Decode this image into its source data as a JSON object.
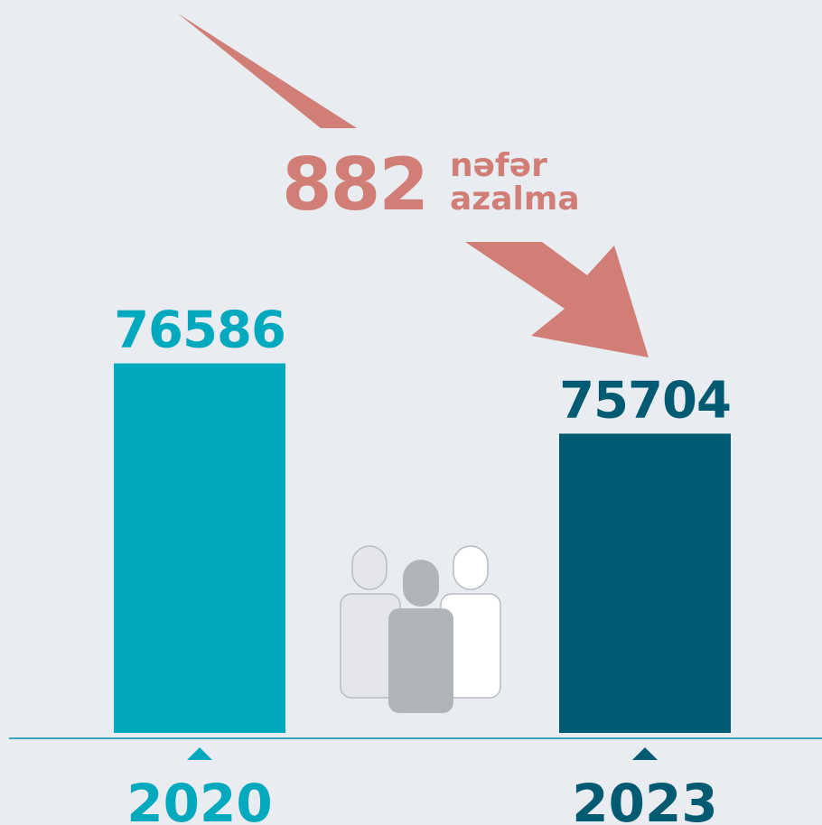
{
  "chart_data": {
    "type": "bar",
    "categories": [
      "2020",
      "2023"
    ],
    "values": [
      76586,
      75704
    ],
    "colors": [
      "#00a9bd",
      "#005a72"
    ],
    "ylim": [
      71950,
      77000
    ],
    "annotation": {
      "number": "882",
      "line1": "nəfər",
      "line2": "azalma"
    }
  }
}
